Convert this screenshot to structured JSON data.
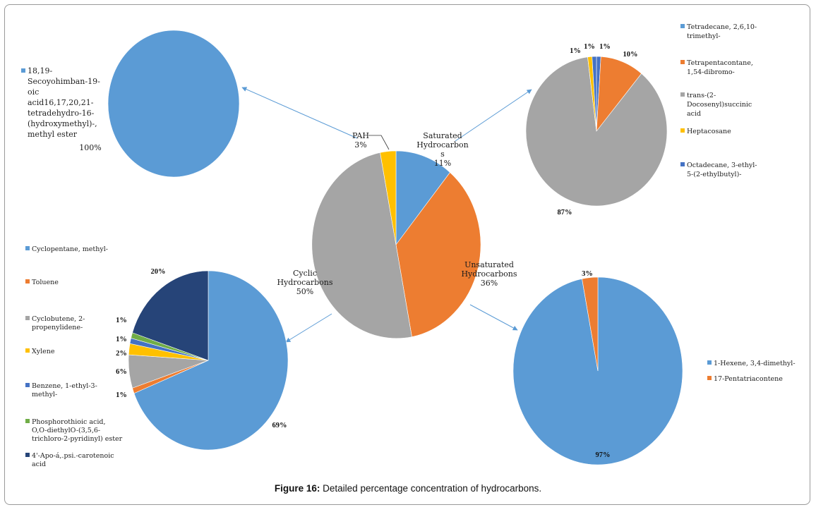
{
  "caption": {
    "label": "Figure 16:",
    "text": " Detailed percentage concentration of hydrocarbons."
  },
  "colors": {
    "blue": "#5b9bd5",
    "orange": "#ed7d31",
    "gray": "#a5a5a5",
    "yellow": "#ffc000",
    "darkblue": "#4472c4",
    "green": "#70ad47",
    "navy": "#264478"
  },
  "chart_data": [
    {
      "id": "main",
      "type": "pie",
      "title": "",
      "slices": [
        {
          "label_lines": [
            "Saturated",
            "Hydrocarbon",
            "s",
            "11%"
          ],
          "value": 11,
          "color": "#5b9bd5"
        },
        {
          "label_lines": [
            "Unsaturated",
            "Hydrocarbons",
            "36%"
          ],
          "value": 36,
          "color": "#ed7d31"
        },
        {
          "label_lines": [
            "Cyclic",
            "Hydrocarbons",
            "50%"
          ],
          "value": 50,
          "color": "#a5a5a5"
        },
        {
          "label_lines": [
            "PAH",
            "3%"
          ],
          "value": 3,
          "color": "#ffc000"
        }
      ]
    },
    {
      "id": "pah",
      "type": "pie",
      "slices": [
        {
          "label": "100%",
          "value": 100,
          "color": "#5b9bd5"
        }
      ],
      "legend": [
        {
          "lines": [
            "18,19-",
            "Secoyohimban-19-",
            "oic",
            "acid16,17,20,21-",
            "tetradehydro-16-",
            "(hydroxymethyl)-,",
            "methyl ester"
          ],
          "color": "#5b9bd5"
        }
      ]
    },
    {
      "id": "saturated",
      "type": "pie",
      "slices": [
        {
          "label": "1%",
          "value": 1,
          "color": "#4472c4"
        },
        {
          "label": "10%",
          "value": 10,
          "color": "#ed7d31"
        },
        {
          "label": "87%",
          "value": 87,
          "color": "#a5a5a5"
        },
        {
          "label": "1%",
          "value": 1,
          "color": "#ffc000"
        },
        {
          "label": "1%",
          "value": 1,
          "color": "#4472c4"
        }
      ],
      "legend": [
        {
          "lines": [
            "Tetradecane, 2,6,10-",
            "trimethyl-"
          ],
          "color": "#5b9bd5"
        },
        {
          "lines": [
            "Tetrapentacontane,",
            "1,54-dibromo-"
          ],
          "color": "#ed7d31"
        },
        {
          "lines": [
            "trans-(2-",
            "Docosenyl)succinic",
            "acid"
          ],
          "color": "#a5a5a5"
        },
        {
          "lines": [
            "Heptacosane"
          ],
          "color": "#ffc000"
        },
        {
          "lines": [
            "Octadecane, 3-ethyl-",
            "5-(2-ethylbutyl)-"
          ],
          "color": "#4472c4"
        }
      ]
    },
    {
      "id": "cyclic",
      "type": "pie",
      "slices": [
        {
          "label": "69%",
          "value": 69,
          "color": "#5b9bd5"
        },
        {
          "label": "1%",
          "value": 1,
          "color": "#ed7d31"
        },
        {
          "label": "6%",
          "value": 6,
          "color": "#a5a5a5"
        },
        {
          "label": "2%",
          "value": 2,
          "color": "#ffc000"
        },
        {
          "label": "1%",
          "value": 1,
          "color": "#4472c4"
        },
        {
          "label": "1%",
          "value": 1,
          "color": "#70ad47"
        },
        {
          "label": "20%",
          "value": 20,
          "color": "#264478"
        }
      ],
      "legend": [
        {
          "lines": [
            "Cyclopentane, methyl-"
          ],
          "color": "#5b9bd5"
        },
        {
          "lines": [
            "Toluene"
          ],
          "color": "#ed7d31"
        },
        {
          "lines": [
            "Cyclobutene, 2-",
            "propenylidene-"
          ],
          "color": "#a5a5a5"
        },
        {
          "lines": [
            "Xylene"
          ],
          "color": "#ffc000"
        },
        {
          "lines": [
            "Benzene, 1-ethyl-3-",
            "methyl-"
          ],
          "color": "#4472c4"
        },
        {
          "lines": [
            "Phosphorothioic acid,",
            "O,O-diethylO-(3,5,6-",
            "trichloro-2-pyridinyl) ester"
          ],
          "color": "#70ad47"
        },
        {
          "lines": [
            "4'-Apo-á,.psi.-carotenoic",
            "acid"
          ],
          "color": "#264478"
        }
      ]
    },
    {
      "id": "unsaturated",
      "type": "pie",
      "slices": [
        {
          "label": "97%",
          "value": 97,
          "color": "#5b9bd5"
        },
        {
          "label": "3%",
          "value": 3,
          "color": "#ed7d31"
        }
      ],
      "legend": [
        {
          "lines": [
            "1-Hexene, 3,4-dimethyl-"
          ],
          "color": "#5b9bd5"
        },
        {
          "lines": [
            "17-Pentatriacontene"
          ],
          "color": "#ed7d31"
        }
      ]
    }
  ]
}
